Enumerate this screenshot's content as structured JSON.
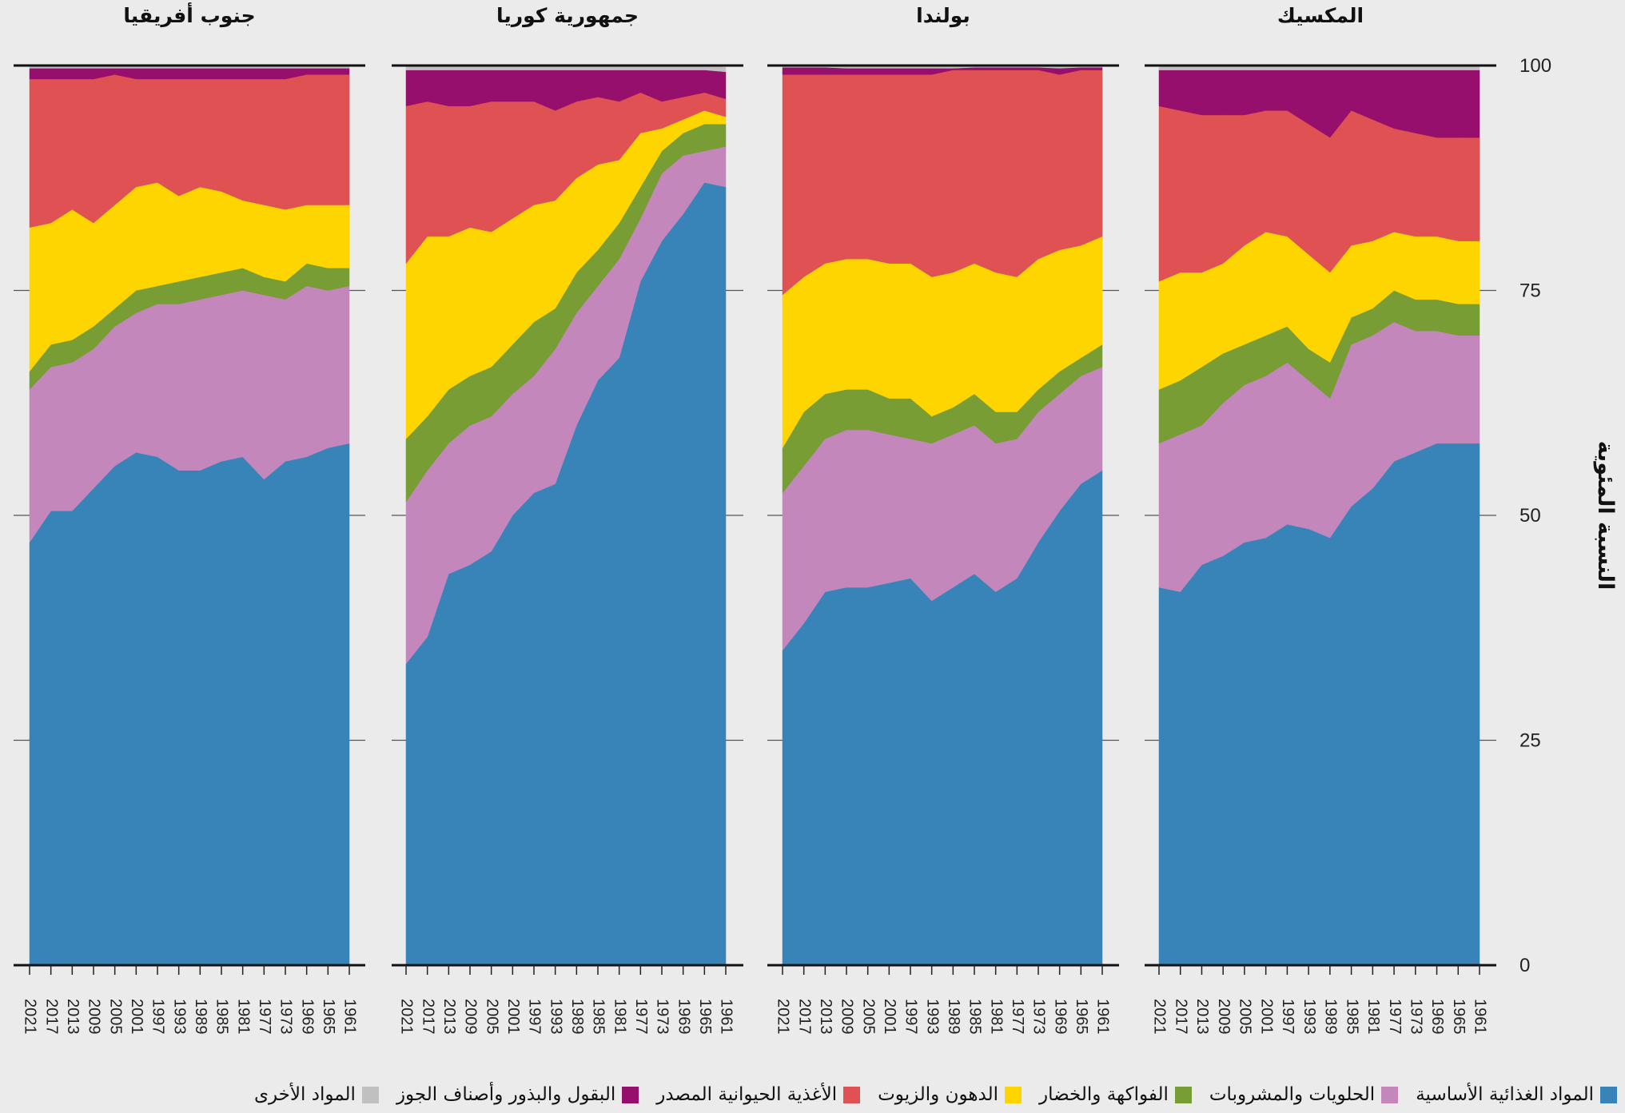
{
  "chart_data": {
    "type": "area",
    "stacked": true,
    "normalized": true,
    "ylabel": "النسبة المئوية",
    "ylim": [
      0,
      100
    ],
    "yticks": [
      "0",
      "25",
      "50",
      "75",
      "100"
    ],
    "x": [
      2021,
      2017,
      2013,
      2009,
      2005,
      2001,
      1997,
      1993,
      1989,
      1985,
      1981,
      1977,
      1973,
      1969,
      1965,
      1961
    ],
    "xtick_labels": [
      "2021",
      "2017",
      "2013",
      "2009",
      "2005",
      "2001",
      "1997",
      "1993",
      "1989",
      "1985",
      "1981",
      "1977",
      "1973",
      "1969",
      "1965",
      "1961"
    ],
    "series_meta": [
      {
        "key": "staples",
        "name": "المواد الغذائية الأساسية",
        "color": "#3883b8"
      },
      {
        "key": "sweets",
        "name": "الحلويات والمشروبات",
        "color": "#c387bb"
      },
      {
        "key": "fruitveg",
        "name": "الفواكهة والخضار",
        "color": "#789d34"
      },
      {
        "key": "fats",
        "name": "الدهون والزيوت",
        "color": "#ffd500"
      },
      {
        "key": "animal",
        "name": "الأغذية الحيوانية المصدر",
        "color": "#df5153"
      },
      {
        "key": "legumes",
        "name": "البقول والبذور وأصناف الجوز",
        "color": "#960f6c"
      },
      {
        "key": "other",
        "name": "المواد الأخرى",
        "color": "#c0c0c0"
      }
    ],
    "panels": [
      {
        "title": "المكسيك",
        "series": {
          "staples": [
            42,
            41.5,
            44.5,
            45.5,
            47,
            47.5,
            49,
            48.5,
            47.5,
            51,
            53,
            56,
            57,
            58,
            58,
            58
          ],
          "sweets": [
            16,
            17.5,
            15.5,
            17,
            17.5,
            18,
            18,
            16.5,
            15.5,
            18,
            17,
            15.5,
            13.5,
            12.5,
            12,
            12
          ],
          "fruitveg": [
            6,
            6,
            6.5,
            5.5,
            4.5,
            4.5,
            4,
            3.5,
            4,
            3,
            3,
            3.5,
            3.5,
            3.5,
            3.5,
            3.5
          ],
          "fats": [
            12,
            12,
            10.5,
            10,
            11,
            11.5,
            10,
            10.5,
            10,
            8,
            7.5,
            6.5,
            7,
            7,
            7,
            7
          ],
          "animal": [
            19.5,
            18,
            17.5,
            16.5,
            14.5,
            13.5,
            14,
            14.5,
            15,
            15,
            13.5,
            11.5,
            11.5,
            11,
            11.5,
            11.5
          ],
          "legumes": [
            4,
            4.5,
            5,
            5,
            5,
            4.5,
            4.5,
            6,
            7.5,
            4.5,
            5.5,
            6.5,
            7,
            7.5,
            7.5,
            7.5
          ],
          "other": [
            0.5,
            0.5,
            0.5,
            0.5,
            0.5,
            0.5,
            0.5,
            0.5,
            0.5,
            0.5,
            0.5,
            0.5,
            0.5,
            0.5,
            0.5,
            0.5
          ]
        }
      },
      {
        "title": "بولندا",
        "series": {
          "staples": [
            35,
            38,
            41.5,
            42,
            42,
            42.5,
            43,
            40.5,
            42,
            43.5,
            41.5,
            43,
            47,
            50.5,
            53.5,
            55
          ],
          "sweets": [
            17.5,
            17.5,
            17,
            17.5,
            17.5,
            16.5,
            15.5,
            17.5,
            17,
            16.5,
            16.5,
            15.5,
            14.5,
            13,
            12,
            11.5
          ],
          "fruitveg": [
            5,
            6,
            5,
            4.5,
            4.5,
            4,
            4.5,
            3,
            3,
            3.5,
            3.5,
            3,
            2.5,
            2.5,
            2,
            2.5
          ],
          "fats": [
            17,
            15,
            14.5,
            14.5,
            14.5,
            15,
            15,
            15.5,
            15,
            14.5,
            15.5,
            15,
            14.5,
            13.5,
            12.5,
            12
          ],
          "animal": [
            24.5,
            22.5,
            21,
            20.5,
            20.5,
            21,
            21,
            22.5,
            22.5,
            21.5,
            22.5,
            23,
            21,
            19.5,
            19.5,
            18.5
          ],
          "legumes": [
            0.8,
            0.8,
            0.8,
            0.7,
            0.7,
            0.7,
            0.7,
            0.7,
            0.2,
            0.3,
            0.3,
            0.3,
            0.3,
            0.7,
            0.3,
            0.3
          ],
          "other": [
            0.2,
            0.2,
            0.2,
            0.3,
            0.3,
            0.3,
            0.3,
            0.3,
            0.3,
            0.2,
            0.2,
            0.2,
            0.2,
            0.3,
            0.2,
            0.2
          ]
        }
      },
      {
        "title": "جمهورية كوريا",
        "series": {
          "staples": [
            33.5,
            36.5,
            43.5,
            44.5,
            46,
            50,
            52.5,
            53.5,
            60,
            65,
            67.5,
            76,
            80.5,
            83.5,
            87,
            86.5
          ],
          "sweets": [
            18,
            18.5,
            14.5,
            15.5,
            15,
            13.5,
            13,
            15,
            12.5,
            10.5,
            11,
            7,
            7.5,
            6.5,
            3.5,
            4.5
          ],
          "fruitveg": [
            7,
            6,
            6,
            5.5,
            5.5,
            5.5,
            6,
            4.5,
            4.5,
            4,
            4,
            3.5,
            2.5,
            2.5,
            3,
            2.5
          ],
          "fats": [
            19.5,
            20,
            17,
            16.5,
            15,
            14,
            13,
            12,
            10.5,
            9.5,
            7,
            6,
            2.5,
            1.5,
            1.5,
            0.8
          ],
          "animal": [
            17.5,
            15,
            14.5,
            13.5,
            14.5,
            13,
            11.5,
            10,
            8.5,
            7.5,
            6.5,
            4.5,
            3,
            2.5,
            2,
            2
          ],
          "legumes": [
            4,
            3.5,
            4,
            4,
            3.5,
            3.5,
            3.5,
            4.5,
            3.5,
            3,
            3.5,
            2.5,
            3.5,
            3,
            2.5,
            3
          ],
          "other": [
            0.5,
            0.5,
            0.5,
            0.5,
            0.5,
            0.5,
            0.5,
            0.5,
            0.5,
            0.5,
            0.5,
            0.5,
            0.5,
            0.5,
            0.5,
            0.5
          ]
        }
      },
      {
        "title": "جنوب أفريقيا",
        "series": {
          "staples": [
            47,
            50.5,
            50.5,
            53,
            55.5,
            57,
            56.5,
            55,
            55,
            56,
            56.5,
            54,
            56,
            56.5,
            57.5,
            58
          ],
          "sweets": [
            17,
            16,
            16.5,
            15.5,
            15.5,
            15.5,
            17,
            18.5,
            19,
            18.5,
            18.5,
            20.5,
            18,
            19,
            17.5,
            17.5
          ],
          "fruitveg": [
            2,
            2.5,
            2.5,
            2.5,
            2,
            2.5,
            2,
            2.5,
            2.5,
            2.5,
            2.5,
            2,
            2,
            2.5,
            2.5,
            2
          ],
          "fats": [
            16,
            13.5,
            14.5,
            11.5,
            11.5,
            11.5,
            11.5,
            9.5,
            10,
            9,
            7.5,
            8,
            8,
            6.5,
            7,
            7
          ],
          "animal": [
            16.5,
            16,
            14.5,
            16,
            14.5,
            12,
            11.5,
            13,
            12,
            12.5,
            13.5,
            14,
            14.5,
            14.5,
            14.5,
            14.5
          ],
          "legumes": [
            1.2,
            1.2,
            1.2,
            1.2,
            0.7,
            1.2,
            1.2,
            1.2,
            1.2,
            1.2,
            1.2,
            1.2,
            1.2,
            0.7,
            0.7,
            0.7
          ],
          "other": [
            0.3,
            0.3,
            0.3,
            0.3,
            0.3,
            0.3,
            0.3,
            0.3,
            0.3,
            0.3,
            0.3,
            0.3,
            0.3,
            0.3,
            0.3,
            0.3
          ]
        }
      }
    ]
  }
}
